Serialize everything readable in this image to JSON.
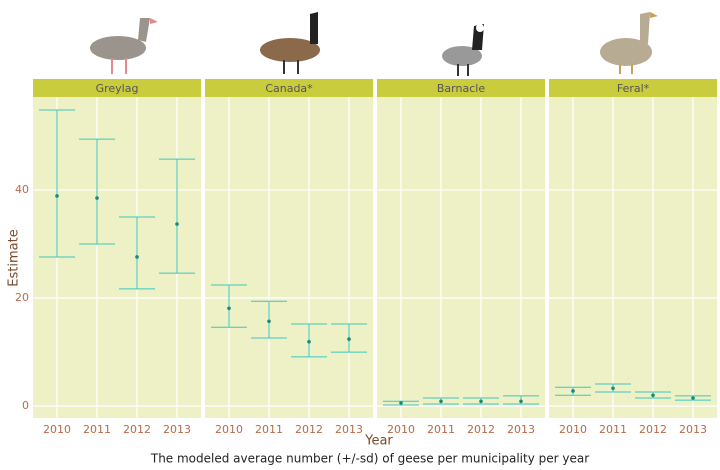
{
  "chart_data": {
    "type": "errorbar",
    "title": "The modeled average number (+/-sd) of geese per municipality per year",
    "x_label": "Year",
    "y_label": "Estimate",
    "categories": [
      "2010",
      "2011",
      "2012",
      "2013"
    ],
    "ylim": [
      -2.2,
      57.2
    ],
    "yticks": [
      0,
      20,
      40
    ],
    "grid": true,
    "bar_color": "#3cc8bd",
    "point_color": "#178a80",
    "facets": [
      {
        "name": "Greylag",
        "values": [
          38.9,
          38.5,
          27.6,
          33.7
        ],
        "lower": [
          27.6,
          30,
          21.7,
          24.6
        ],
        "upper": [
          54.8,
          49.4,
          35,
          45.7
        ]
      },
      {
        "name": "Canada*",
        "values": [
          18.1,
          15.7,
          11.9,
          12.4
        ],
        "lower": [
          14.6,
          12.6,
          9.1,
          10
        ],
        "upper": [
          22.4,
          19.4,
          15.2,
          15.2
        ]
      },
      {
        "name": "Barnacle",
        "values": [
          0.6,
          0.9,
          0.9,
          0.9
        ],
        "lower": [
          0.2,
          0.4,
          0.4,
          0.4
        ],
        "upper": [
          0.9,
          1.5,
          1.5,
          1.9
        ]
      },
      {
        "name": "Feral*",
        "values": [
          2.8,
          3.3,
          2,
          1.5
        ],
        "lower": [
          2,
          2.6,
          1.5,
          1.1
        ],
        "upper": [
          3.5,
          4.1,
          2.6,
          1.9
        ]
      }
    ]
  }
}
